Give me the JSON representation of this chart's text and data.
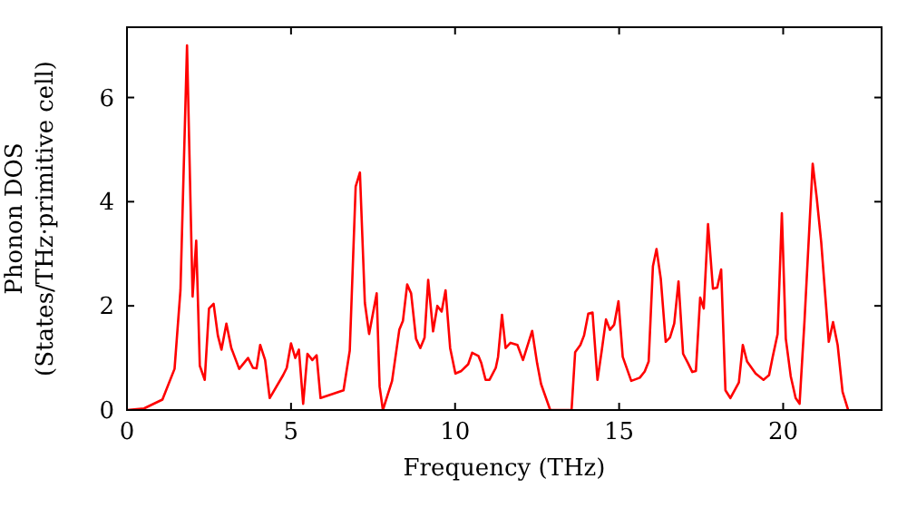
{
  "chart_data": {
    "type": "line",
    "xlabel": "Frequency (THz)",
    "ylabel": "Phonon DOS\n(States/THz·primitive cell)",
    "xlim": [
      0,
      23
    ],
    "ylim": [
      0,
      7.35
    ],
    "xticks": [
      0,
      5,
      10,
      15,
      20
    ],
    "yticks": [
      0,
      2,
      4,
      6
    ],
    "grid": false,
    "marker": "none",
    "line_style": "solid",
    "series": [
      {
        "color": "#ff0000",
        "x": [
          0,
          0.52,
          1.08,
          1.45,
          1.63,
          1.83,
          2.0,
          2.11,
          2.22,
          2.37,
          2.5,
          2.64,
          2.77,
          2.88,
          3.03,
          3.18,
          3.42,
          3.69,
          3.84,
          3.95,
          4.06,
          4.21,
          4.35,
          4.76,
          4.87,
          5.0,
          5.13,
          5.24,
          5.37,
          5.5,
          5.65,
          5.78,
          5.9,
          6.6,
          6.79,
          6.97,
          7.1,
          7.25,
          7.38,
          7.61,
          7.7,
          7.8,
          8.08,
          8.3,
          8.41,
          8.54,
          8.66,
          8.81,
          8.94,
          9.07,
          9.18,
          9.33,
          9.46,
          9.59,
          9.71,
          9.85,
          10.01,
          10.19,
          10.4,
          10.52,
          10.71,
          10.8,
          10.93,
          11.05,
          11.24,
          11.31,
          11.43,
          11.54,
          11.69,
          11.9,
          12.07,
          12.35,
          12.5,
          12.62,
          12.9,
          13.55,
          13.66,
          13.82,
          13.93,
          14.06,
          14.19,
          14.34,
          14.47,
          14.6,
          14.72,
          14.85,
          14.98,
          15.11,
          15.37,
          15.63,
          15.78,
          15.9,
          16.03,
          16.14,
          16.27,
          16.42,
          16.55,
          16.68,
          16.81,
          16.95,
          17.1,
          17.23,
          17.34,
          17.47,
          17.58,
          17.71,
          17.86,
          17.99,
          18.11,
          18.24,
          18.39,
          18.65,
          18.77,
          18.9,
          19.16,
          19.4,
          19.57,
          19.68,
          19.83,
          19.96,
          20.08,
          20.23,
          20.38,
          20.5,
          20.65,
          20.9,
          21.02,
          21.16,
          21.39,
          21.52,
          21.66,
          21.81,
          21.98
        ],
        "values": [
          0,
          0.03,
          0.2,
          0.79,
          2.3,
          7.0,
          2.18,
          3.25,
          0.85,
          0.58,
          1.95,
          2.04,
          1.43,
          1.16,
          1.66,
          1.19,
          0.79,
          1.0,
          0.81,
          0.8,
          1.25,
          0.96,
          0.23,
          0.67,
          0.81,
          1.28,
          1.0,
          1.16,
          0.12,
          1.08,
          0.96,
          1.05,
          0.23,
          0.38,
          1.14,
          4.29,
          4.56,
          2.06,
          1.46,
          2.24,
          0.45,
          0,
          0.56,
          1.54,
          1.71,
          2.41,
          2.24,
          1.37,
          1.19,
          1.39,
          2.5,
          1.51,
          2.0,
          1.89,
          2.3,
          1.19,
          0.7,
          0.75,
          0.88,
          1.1,
          1.04,
          0.9,
          0.58,
          0.58,
          0.81,
          1.02,
          1.83,
          1.19,
          1.29,
          1.25,
          0.96,
          1.52,
          0.9,
          0.5,
          0,
          0,
          1.11,
          1.25,
          1.43,
          1.85,
          1.87,
          0.58,
          1.14,
          1.74,
          1.54,
          1.64,
          2.09,
          1.02,
          0.56,
          0.62,
          0.74,
          0.93,
          2.76,
          3.09,
          2.52,
          1.31,
          1.39,
          1.66,
          2.47,
          1.08,
          0.9,
          0.73,
          0.75,
          2.16,
          1.95,
          3.57,
          2.33,
          2.35,
          2.7,
          0.38,
          0.23,
          0.53,
          1.25,
          0.93,
          0.7,
          0.58,
          0.67,
          1.02,
          1.46,
          3.78,
          1.37,
          0.65,
          0.23,
          0.12,
          1.71,
          4.73,
          4.09,
          3.22,
          1.31,
          1.69,
          1.25,
          0.35,
          0
        ]
      }
    ]
  }
}
